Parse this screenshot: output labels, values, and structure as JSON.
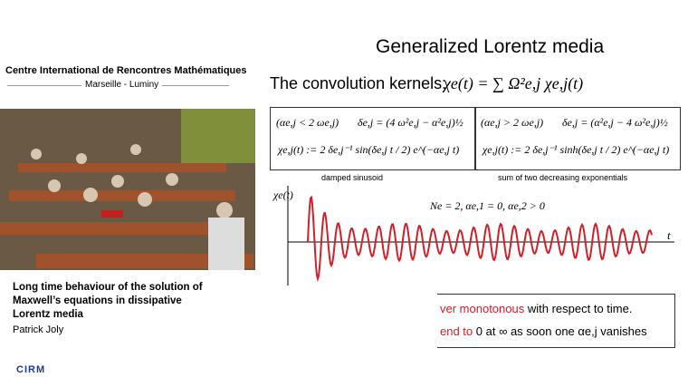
{
  "sidebar": {
    "institute": "Centre International de Rencontres Mathématiques",
    "location": "Marseille - Luminy",
    "talk_title": "Long time behaviour of the solution of Maxwell’s equations in dissipative Lorentz media",
    "speaker": "Patrick Joly",
    "logo": "CIRM"
  },
  "slide": {
    "title": "Generalized Lorentz media",
    "subtitle": "The convolution kernels:",
    "kernel_formula": "χe(t) = ∑ Ω²e,j χe,j(t)",
    "left_box": {
      "condition": "(αe,j < 2 ωe,j)",
      "delta": "δe,j = (4 ω²e,j − α²e,j)½",
      "kernel": "χe,j(t) := 2 δe,j⁻¹ sin(δe,j t / 2) e^(−αe,j t)"
    },
    "right_box": {
      "condition": "(αe,j > 2 ωe,j)",
      "delta": "δe,j = (α²e,j − 4 ω²e,j)½",
      "kernel": "χe,j(t) := 2 δe,j⁻¹ sinh(δe,j t / 2) e^(−αe,j t)"
    },
    "caption_left": "damped sinusoid",
    "caption_right": "sum of two decreasing exponentials",
    "plot": {
      "ylabel": "χe(t)",
      "xlabel": "t",
      "annotation": "Ne = 2,   αe,1 = 0, αe,2 > 0"
    },
    "bullets": [
      {
        "highlight": "ver monotonous",
        "text": "with respect to time."
      },
      {
        "highlight": "end to",
        "text": "0 at ∞ as soon one αe,j vanishes"
      }
    ]
  }
}
